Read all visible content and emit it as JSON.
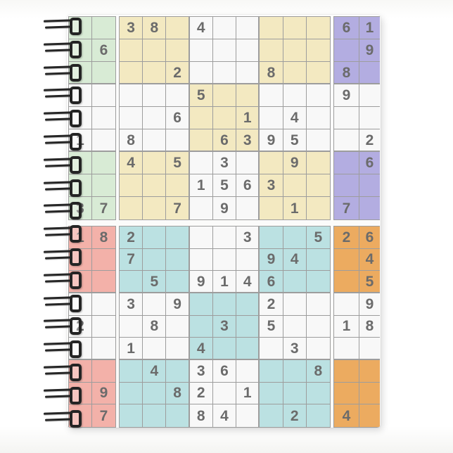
{
  "palette": {
    "green": "#d8ebd5",
    "cream": "#f3e9c1",
    "purple": "#b3ade1",
    "pink": "#f3b1a9",
    "teal": "#bbe1e2",
    "orange": "#ecab60",
    "white": "#f8f8f8",
    "line": "#9d9d9d",
    "digit": "#6b6b6b",
    "cover": "#fcfcfc",
    "coil": "#242424"
  },
  "spiral": {
    "coil_count": 18
  },
  "bands": [
    {
      "box_colors": [
        [
          "green",
          "cream",
          "white",
          "cream",
          "purple"
        ],
        [
          "white",
          "white",
          "cream",
          "white",
          "white"
        ],
        [
          "green",
          "cream",
          "white",
          "cream",
          "purple"
        ]
      ],
      "rows": [
        [
          "",
          "",
          "3",
          "8",
          "",
          "4",
          "",
          "",
          "",
          "",
          "",
          "6",
          "1"
        ],
        [
          "",
          "6",
          "",
          "",
          "",
          "",
          "",
          "",
          "",
          "",
          "",
          "",
          "9"
        ],
        [
          "",
          "",
          "",
          "",
          "2",
          "",
          "",
          "",
          "8",
          "",
          "",
          "8",
          ""
        ],
        [
          "",
          "",
          "",
          "",
          "",
          "5",
          "",
          "",
          "",
          "",
          "",
          "9",
          ""
        ],
        [
          "",
          "",
          "",
          "",
          "6",
          "",
          "",
          "1",
          "",
          "4",
          "",
          "",
          ""
        ],
        [
          "1",
          "",
          "8",
          "",
          "",
          "",
          "6",
          "3",
          "9",
          "5",
          "",
          "",
          "2"
        ],
        [
          "",
          "",
          "4",
          "",
          "5",
          "",
          "3",
          "",
          "",
          "9",
          "",
          "",
          "6"
        ],
        [
          "",
          "",
          "",
          "",
          "",
          "1",
          "5",
          "6",
          "3",
          "",
          "",
          "",
          ""
        ],
        [
          "3",
          "7",
          "",
          "",
          "7",
          "",
          "9",
          "",
          "",
          "1",
          "",
          "7",
          ""
        ]
      ]
    },
    {
      "box_colors": [
        [
          "pink",
          "teal",
          "white",
          "teal",
          "orange"
        ],
        [
          "white",
          "white",
          "teal",
          "white",
          "white"
        ],
        [
          "pink",
          "teal",
          "white",
          "teal",
          "orange"
        ]
      ],
      "rows": [
        [
          "1",
          "8",
          "2",
          "",
          "",
          "",
          "",
          "3",
          "",
          "",
          "5",
          "2",
          "6"
        ],
        [
          "",
          "",
          "7",
          "",
          "",
          "",
          "",
          "",
          "9",
          "4",
          "",
          "",
          "4"
        ],
        [
          "",
          "",
          "",
          "5",
          "",
          "9",
          "1",
          "4",
          "6",
          "",
          "",
          "",
          "5"
        ],
        [
          "",
          "",
          "3",
          "",
          "9",
          "",
          "",
          "",
          "2",
          "",
          "",
          "",
          "9"
        ],
        [
          "2",
          "",
          "",
          "8",
          "",
          "",
          "3",
          "",
          "5",
          "",
          "",
          "1",
          "8"
        ],
        [
          "",
          "",
          "1",
          "",
          "",
          "4",
          "",
          "",
          "",
          "3",
          "",
          "",
          ""
        ],
        [
          "",
          "",
          "",
          "4",
          "",
          "3",
          "6",
          "",
          "",
          "",
          "8",
          "",
          ""
        ],
        [
          "",
          "9",
          "",
          "",
          "8",
          "2",
          "",
          "1",
          "",
          "",
          "",
          "",
          ""
        ],
        [
          "",
          "7",
          "",
          "",
          "",
          "8",
          "4",
          "",
          "",
          "2",
          "",
          "4",
          ""
        ]
      ]
    }
  ]
}
